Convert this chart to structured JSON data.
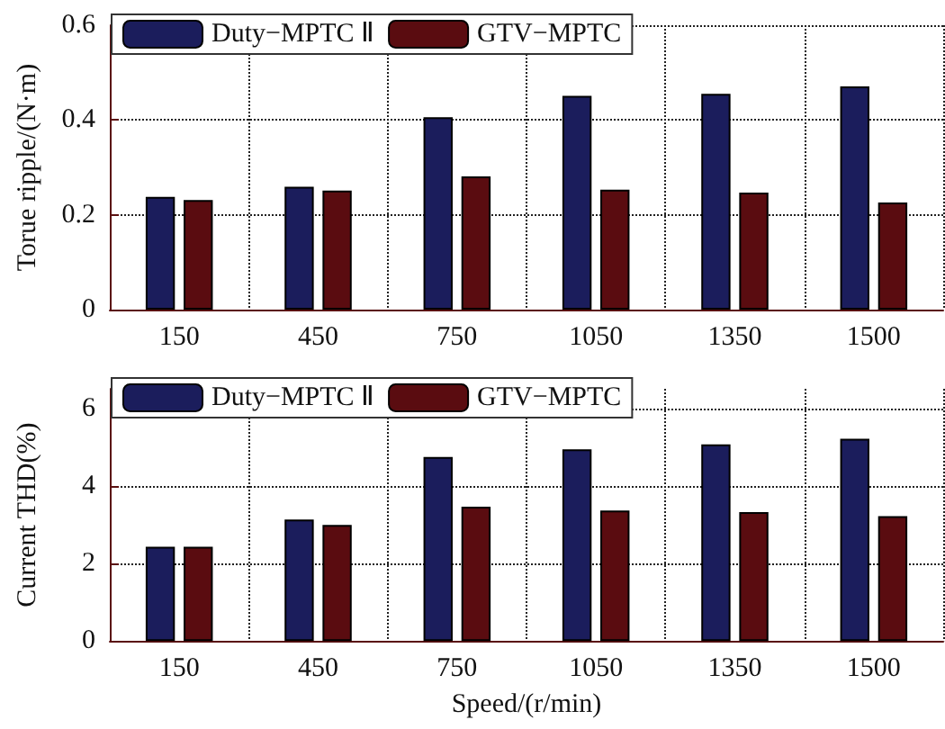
{
  "chart_data": [
    {
      "type": "bar",
      "ylabel": "Torue ripple/(N·m)",
      "categories": [
        "150",
        "450",
        "750",
        "1050",
        "1350",
        "1500"
      ],
      "series": [
        {
          "name": "Duty−MPTC Ⅱ",
          "color": "#1b1d5c",
          "values": [
            0.238,
            0.259,
            0.406,
            0.451,
            0.455,
            0.471
          ]
        },
        {
          "name": "GTV−MPTC",
          "color": "#5a0c10",
          "values": [
            0.231,
            0.251,
            0.281,
            0.253,
            0.247,
            0.226
          ]
        }
      ],
      "ylim": [
        0,
        0.6
      ],
      "yticks": [
        0,
        0.2,
        0.4,
        0.6
      ],
      "grid": true,
      "legend": "top left"
    },
    {
      "type": "bar",
      "ylabel": "Current THD(%)",
      "xlabel": "Speed/(r/min)",
      "categories": [
        "150",
        "450",
        "750",
        "1050",
        "1350",
        "1500"
      ],
      "series": [
        {
          "name": "Duty−MPTC Ⅱ",
          "color": "#1b1d5c",
          "values": [
            2.43,
            3.13,
            4.74,
            4.94,
            5.07,
            5.21
          ]
        },
        {
          "name": "GTV−MPTC",
          "color": "#5a0c10",
          "values": [
            2.43,
            2.99,
            3.46,
            3.36,
            3.32,
            3.22
          ]
        }
      ],
      "ylim": [
        0,
        6.5
      ],
      "yticks": [
        0,
        2,
        4,
        6
      ],
      "grid": true,
      "legend": "top left"
    }
  ]
}
